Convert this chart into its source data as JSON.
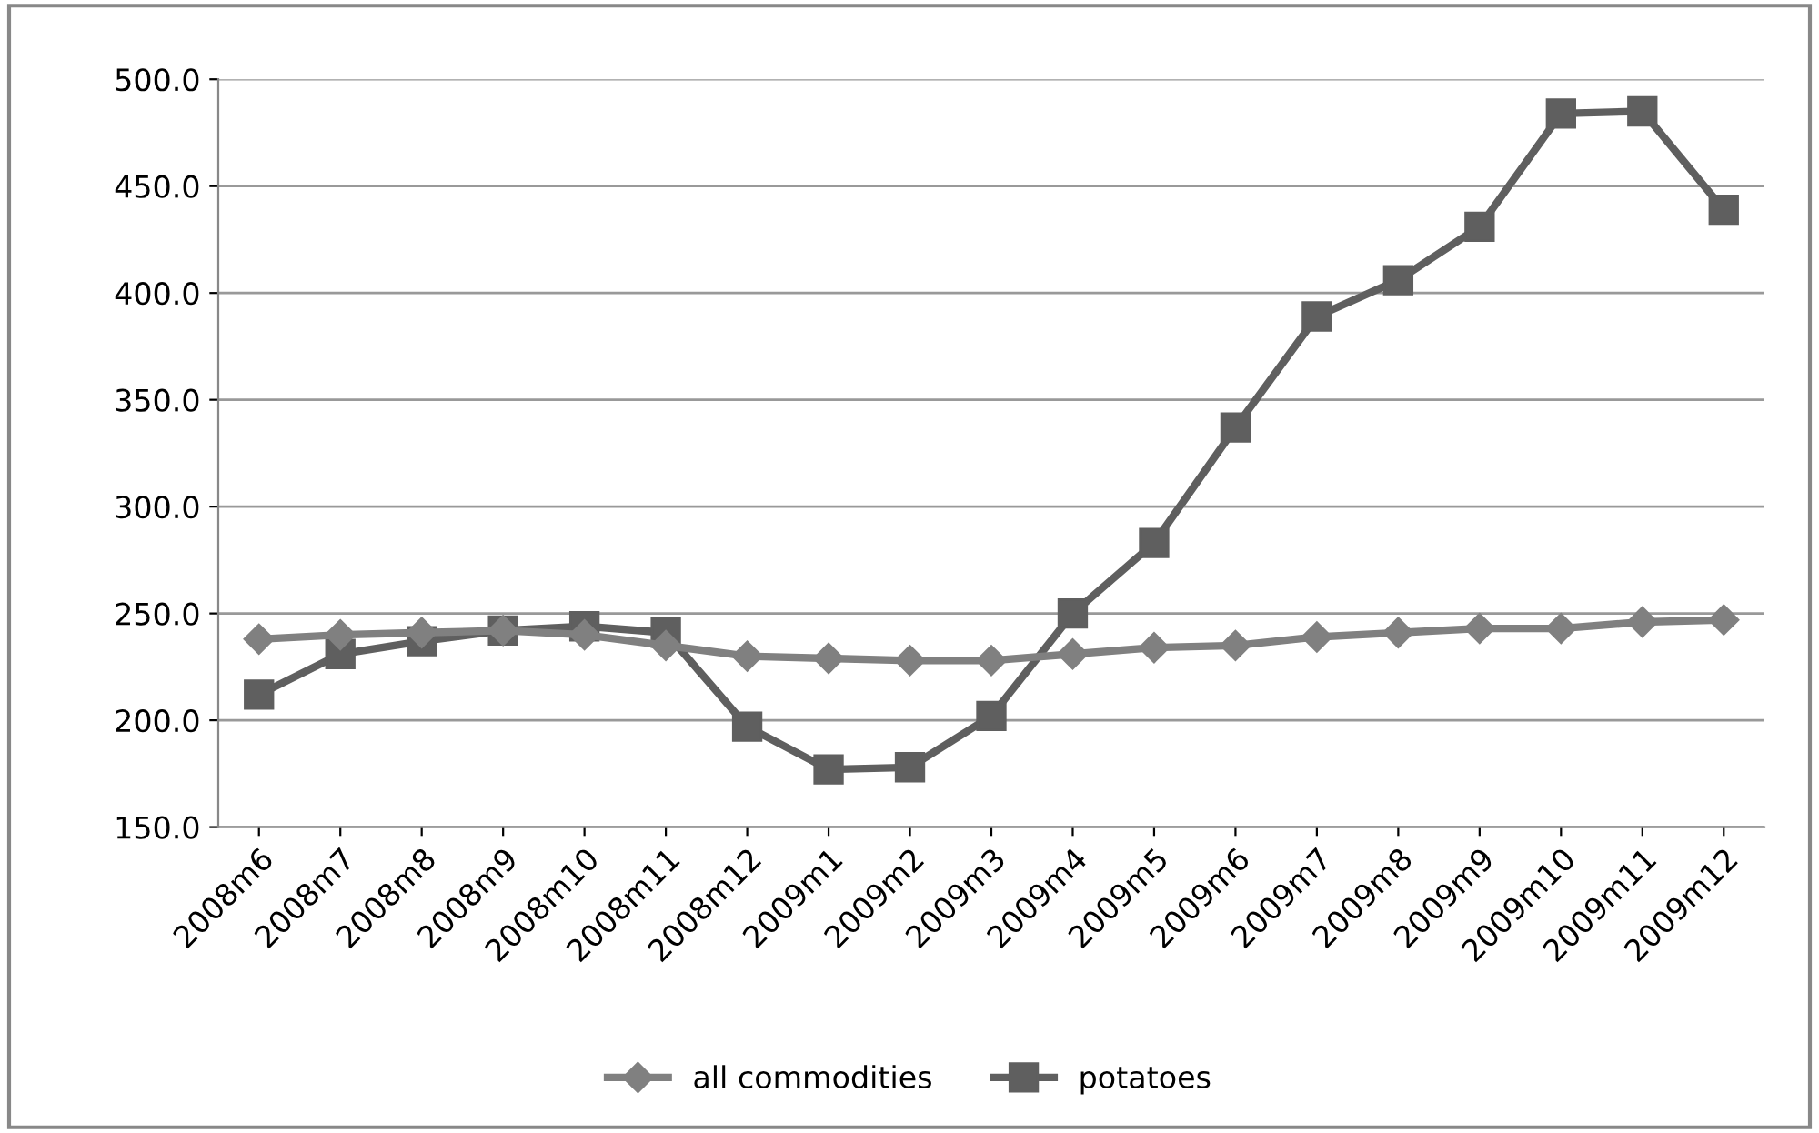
{
  "chart_data": {
    "type": "line",
    "categories": [
      "2008m6",
      "2008m7",
      "2008m8",
      "2008m9",
      "2008m10",
      "2008m11",
      "2008m12",
      "2009m1",
      "2009m2",
      "2009m3",
      "2009m4",
      "2009m5",
      "2009m6",
      "2009m7",
      "2009m8",
      "2009m9",
      "2009m10",
      "2009m11",
      "2009m12"
    ],
    "series": [
      {
        "name": "all commodities",
        "color": "#808080",
        "marker": "diamond",
        "values": [
          238,
          240,
          241,
          242,
          240,
          235,
          230,
          229,
          228,
          228,
          231,
          234,
          235,
          239,
          241,
          243,
          243,
          246,
          247
        ]
      },
      {
        "name": "potatoes",
        "color": "#5f5f5f",
        "marker": "square",
        "values": [
          212,
          231,
          237,
          242,
          244,
          241,
          197,
          177,
          178,
          202,
          250,
          283,
          337,
          389,
          406,
          431,
          484,
          485,
          439
        ]
      }
    ],
    "ylim": [
      150,
      500
    ],
    "yticks": [
      {
        "value": 150,
        "label": "150.0"
      },
      {
        "value": 200,
        "label": "200.0"
      },
      {
        "value": 250,
        "label": "250.0"
      },
      {
        "value": 300,
        "label": "300.0"
      },
      {
        "value": 350,
        "label": "350.0"
      },
      {
        "value": 400,
        "label": "400.0"
      },
      {
        "value": 450,
        "label": "450.0"
      },
      {
        "value": 500,
        "label": "500.0"
      }
    ],
    "grid": "y",
    "legend": "bottom",
    "line_style": "solid"
  }
}
